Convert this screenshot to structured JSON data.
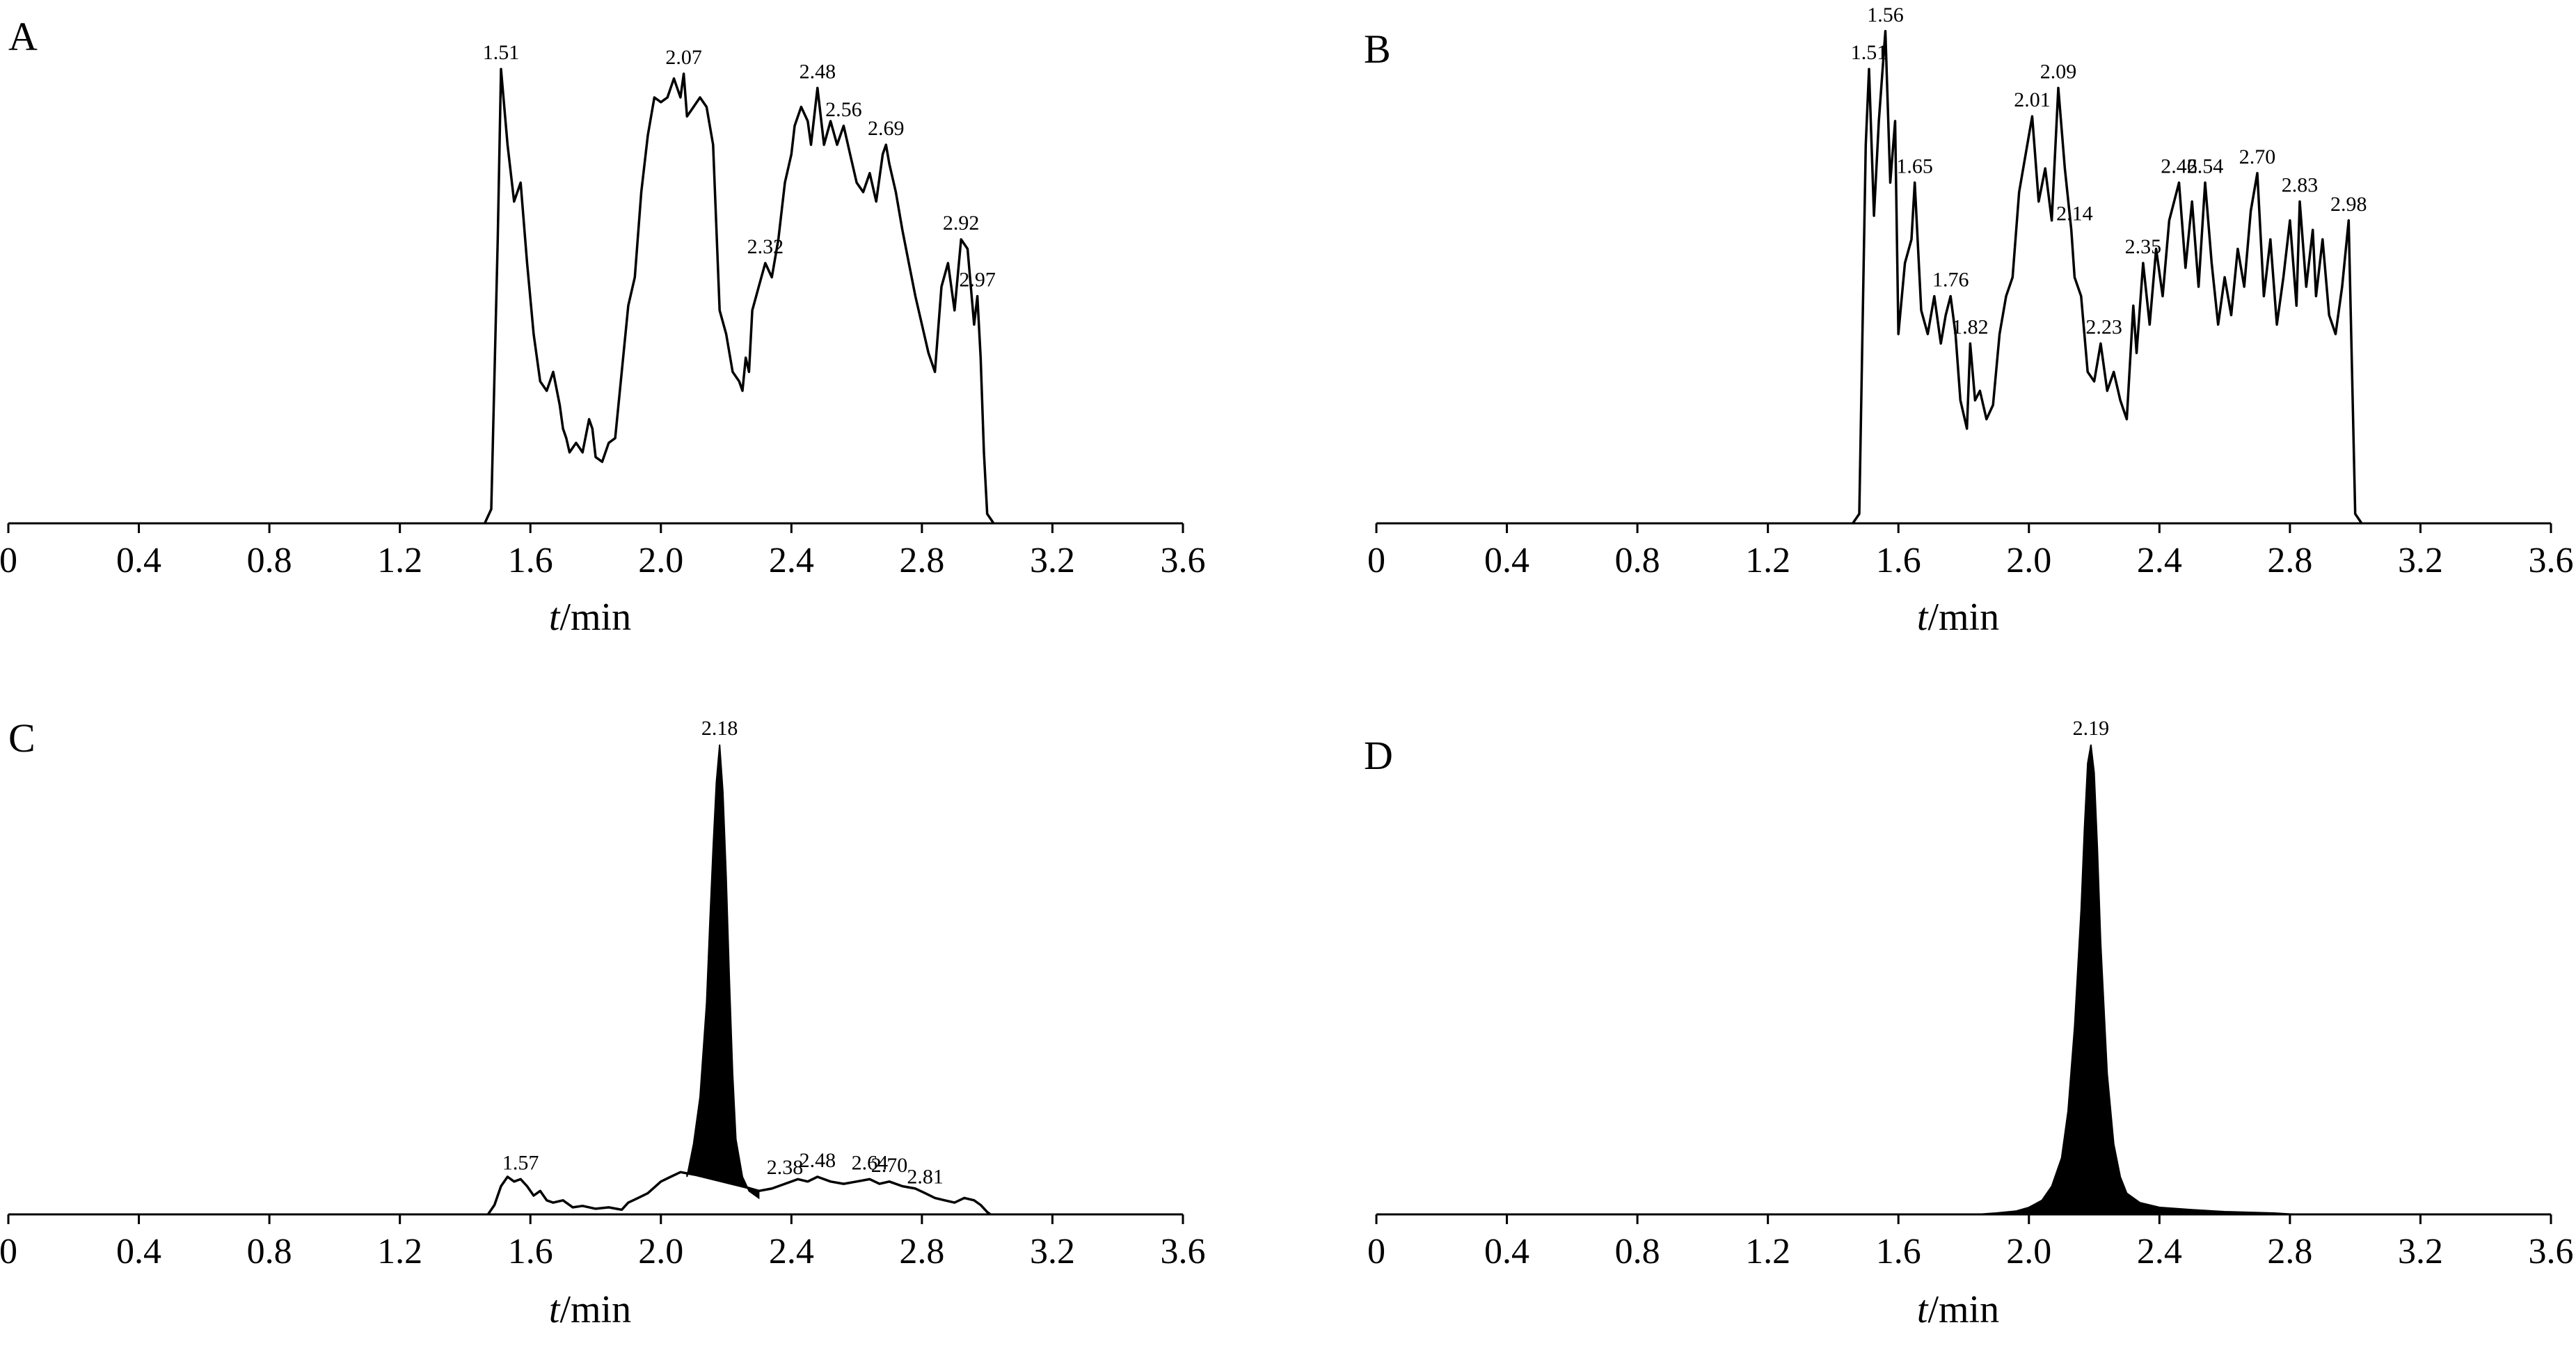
{
  "figure": {
    "background": "#ffffff",
    "line_color": "#000000",
    "fill_color": "#000000"
  },
  "chart_data": [
    {
      "panel": "A",
      "type": "line",
      "xlabel": {
        "italic": "t",
        "rest": "/min"
      },
      "ylabel": "",
      "xlim": [
        0,
        3.6
      ],
      "xticks": [
        0,
        0.4,
        0.8,
        1.2,
        1.6,
        2.0,
        2.4,
        2.8,
        3.2,
        3.6
      ],
      "xtick_labels": [
        "0",
        "0.4",
        "0.8",
        "1.2",
        "1.6",
        "2.0",
        "2.4",
        "2.8",
        "3.2",
        "3.6"
      ],
      "ylim": [
        0,
        100
      ],
      "grid": false,
      "series": [
        {
          "x": [
            1.46,
            1.48,
            1.5,
            1.51,
            1.53,
            1.55,
            1.57,
            1.59,
            1.61,
            1.63,
            1.65,
            1.67,
            1.69,
            1.7,
            1.71,
            1.72,
            1.74,
            1.76,
            1.78,
            1.79,
            1.8,
            1.82,
            1.84,
            1.86,
            1.88,
            1.9,
            1.92,
            1.94,
            1.96,
            1.98,
            2.0,
            2.02,
            2.04,
            2.05,
            2.06,
            2.07,
            2.08,
            2.1,
            2.12,
            2.14,
            2.16,
            2.18,
            2.2,
            2.22,
            2.24,
            2.25,
            2.26,
            2.27,
            2.28,
            2.3,
            2.32,
            2.34,
            2.36,
            2.38,
            2.4,
            2.41,
            2.43,
            2.45,
            2.46,
            2.48,
            2.5,
            2.52,
            2.54,
            2.56,
            2.58,
            2.6,
            2.62,
            2.64,
            2.66,
            2.68,
            2.69,
            2.7,
            2.72,
            2.74,
            2.76,
            2.78,
            2.8,
            2.82,
            2.84,
            2.86,
            2.88,
            2.9,
            2.92,
            2.94,
            2.96,
            2.97,
            2.98,
            2.99,
            3.0,
            3.02
          ],
          "y": [
            0,
            3,
            60,
            96,
            80,
            68,
            72,
            55,
            40,
            30,
            28,
            32,
            25,
            20,
            18,
            15,
            17,
            15,
            22,
            20,
            14,
            13,
            17,
            18,
            32,
            46,
            52,
            70,
            82,
            90,
            89,
            90,
            94,
            92,
            90,
            95,
            86,
            88,
            90,
            88,
            80,
            45,
            40,
            32,
            30,
            28,
            35,
            32,
            45,
            50,
            55,
            52,
            60,
            72,
            78,
            84,
            88,
            85,
            80,
            92,
            80,
            85,
            80,
            84,
            78,
            72,
            70,
            74,
            68,
            78,
            80,
            76,
            70,
            62,
            55,
            48,
            42,
            36,
            32,
            50,
            55,
            45,
            60,
            58,
            42,
            48,
            35,
            15,
            2,
            0
          ]
        }
      ],
      "annotations": [
        {
          "x": 1.51,
          "text": "1.51"
        },
        {
          "x": 2.07,
          "text": "2.07"
        },
        {
          "x": 2.32,
          "text": "2.32"
        },
        {
          "x": 2.48,
          "text": "2.48"
        },
        {
          "x": 2.56,
          "text": "2.56"
        },
        {
          "x": 2.69,
          "text": "2.69"
        },
        {
          "x": 2.92,
          "text": "2.92"
        },
        {
          "x": 2.97,
          "text": "2.97"
        }
      ]
    },
    {
      "panel": "B",
      "type": "line",
      "xlabel": {
        "italic": "t",
        "rest": "/min"
      },
      "ylabel": "",
      "xlim": [
        0,
        3.6
      ],
      "xticks": [
        0,
        0.4,
        0.8,
        1.2,
        1.6,
        2.0,
        2.4,
        2.8,
        3.2,
        3.6
      ],
      "xtick_labels": [
        "0",
        "0.4",
        "0.8",
        "1.2",
        "1.6",
        "2.0",
        "2.4",
        "2.8",
        "3.2",
        "3.6"
      ],
      "ylim": [
        0,
        100
      ],
      "grid": false,
      "series": [
        {
          "x": [
            1.46,
            1.48,
            1.5,
            1.51,
            1.525,
            1.54,
            1.56,
            1.575,
            1.59,
            1.6,
            1.62,
            1.64,
            1.65,
            1.67,
            1.69,
            1.71,
            1.73,
            1.745,
            1.76,
            1.775,
            1.79,
            1.81,
            1.82,
            1.835,
            1.85,
            1.87,
            1.89,
            1.91,
            1.93,
            1.95,
            1.97,
            1.99,
            2.01,
            2.03,
            2.05,
            2.07,
            2.09,
            2.11,
            2.13,
            2.14,
            2.16,
            2.18,
            2.2,
            2.22,
            2.24,
            2.26,
            2.28,
            2.3,
            2.32,
            2.33,
            2.35,
            2.37,
            2.39,
            2.41,
            2.43,
            2.46,
            2.48,
            2.5,
            2.52,
            2.54,
            2.56,
            2.58,
            2.6,
            2.62,
            2.64,
            2.66,
            2.68,
            2.7,
            2.72,
            2.74,
            2.76,
            2.78,
            2.8,
            2.82,
            2.83,
            2.85,
            2.87,
            2.88,
            2.9,
            2.92,
            2.94,
            2.96,
            2.98,
            3.0,
            3.02
          ],
          "y": [
            0,
            2,
            80,
            96,
            65,
            85,
            104,
            72,
            85,
            40,
            55,
            60,
            72,
            45,
            40,
            48,
            38,
            44,
            48,
            40,
            26,
            20,
            38,
            26,
            28,
            22,
            25,
            40,
            48,
            52,
            70,
            78,
            86,
            68,
            75,
            64,
            92,
            75,
            62,
            52,
            48,
            32,
            30,
            38,
            28,
            32,
            26,
            22,
            46,
            36,
            55,
            42,
            58,
            48,
            64,
            72,
            54,
            68,
            50,
            72,
            55,
            42,
            52,
            44,
            58,
            50,
            66,
            74,
            48,
            60,
            42,
            52,
            64,
            46,
            68,
            50,
            62,
            48,
            60,
            44,
            40,
            50,
            64,
            2,
            0
          ]
        }
      ],
      "annotations": [
        {
          "x": 1.51,
          "text": "1.51"
        },
        {
          "x": 1.56,
          "text": "1.56"
        },
        {
          "x": 1.65,
          "text": "1.65"
        },
        {
          "x": 1.76,
          "text": "1.76"
        },
        {
          "x": 1.82,
          "text": "1.82"
        },
        {
          "x": 2.01,
          "text": "2.01"
        },
        {
          "x": 2.09,
          "text": "2.09"
        },
        {
          "x": 2.14,
          "text": "2.14"
        },
        {
          "x": 2.23,
          "text": "2.23"
        },
        {
          "x": 2.35,
          "text": "2.35"
        },
        {
          "x": 2.46,
          "text": "2.46"
        },
        {
          "x": 2.54,
          "text": "2.54"
        },
        {
          "x": 2.7,
          "text": "2.70"
        },
        {
          "x": 2.83,
          "text": "2.83"
        },
        {
          "x": 2.98,
          "text": "2.98"
        }
      ]
    },
    {
      "panel": "C",
      "type": "line",
      "xlabel": {
        "italic": "t",
        "rest": "/min"
      },
      "ylabel": "",
      "xlim": [
        0,
        3.6
      ],
      "xticks": [
        0,
        0.4,
        0.8,
        1.2,
        1.6,
        2.0,
        2.4,
        2.8,
        3.2,
        3.6
      ],
      "xtick_labels": [
        "0",
        "0.4",
        "0.8",
        "1.2",
        "1.6",
        "2.0",
        "2.4",
        "2.8",
        "3.2",
        "3.6"
      ],
      "ylim": [
        0,
        100
      ],
      "grid": false,
      "series": [
        {
          "x": [
            1.47,
            1.49,
            1.51,
            1.53,
            1.55,
            1.57,
            1.59,
            1.61,
            1.63,
            1.65,
            1.67,
            1.7,
            1.73,
            1.76,
            1.8,
            1.84,
            1.88,
            1.9,
            1.93,
            1.96,
            2.0,
            2.03,
            2.06,
            2.1,
            2.15,
            2.2,
            2.25,
            2.3,
            2.34,
            2.38,
            2.42,
            2.45,
            2.48,
            2.52,
            2.56,
            2.6,
            2.64,
            2.67,
            2.7,
            2.74,
            2.78,
            2.81,
            2.84,
            2.87,
            2.9,
            2.93,
            2.96,
            2.98,
            3.0,
            3.01
          ],
          "y": [
            0,
            2,
            6,
            8,
            7,
            7.5,
            6,
            4,
            5,
            3,
            2.5,
            3,
            1.5,
            1.8,
            1.2,
            1.5,
            1,
            2.5,
            3.5,
            4.5,
            7,
            8,
            9,
            8.5,
            8,
            7,
            6,
            5,
            5.5,
            6.5,
            7.5,
            7,
            8,
            7,
            6.5,
            7,
            7.5,
            6.5,
            7,
            6,
            5.5,
            4.5,
            3.5,
            3,
            2.5,
            3.5,
            3,
            2,
            0.5,
            0
          ]
        }
      ],
      "filled_peak": {
        "x": [
          2.08,
          2.1,
          2.12,
          2.14,
          2.15,
          2.16,
          2.17,
          2.18,
          2.19,
          2.2,
          2.21,
          2.22,
          2.23,
          2.25,
          2.27,
          2.3
        ],
        "y": [
          8,
          15,
          25,
          45,
          62,
          78,
          92,
          100,
          90,
          72,
          50,
          30,
          16,
          8,
          5,
          3.5
        ]
      },
      "annotations": [
        {
          "x": 1.57,
          "text": "1.57"
        },
        {
          "x": 2.18,
          "text": "2.18"
        },
        {
          "x": 2.38,
          "text": "2.38"
        },
        {
          "x": 2.48,
          "text": "2.48"
        },
        {
          "x": 2.64,
          "text": "2.64"
        },
        {
          "x": 2.7,
          "text": "2.70"
        },
        {
          "x": 2.81,
          "text": "2.81"
        }
      ]
    },
    {
      "panel": "D",
      "type": "area",
      "xlabel": {
        "italic": "t",
        "rest": "/min"
      },
      "ylabel": "",
      "xlim": [
        0,
        3.6
      ],
      "xticks": [
        0,
        0.4,
        0.8,
        1.2,
        1.6,
        2.0,
        2.4,
        2.8,
        3.2,
        3.6
      ],
      "xtick_labels": [
        "0",
        "0.4",
        "0.8",
        "1.2",
        "1.6",
        "2.0",
        "2.4",
        "2.8",
        "3.2",
        "3.6"
      ],
      "ylim": [
        0,
        100
      ],
      "grid": false,
      "series": [
        {
          "x": [
            1.84,
            1.9,
            1.96,
            2.0,
            2.04,
            2.07,
            2.1,
            2.12,
            2.14,
            2.16,
            2.17,
            2.18,
            2.19,
            2.2,
            2.21,
            2.22,
            2.24,
            2.26,
            2.28,
            2.3,
            2.34,
            2.4,
            2.5,
            2.6,
            2.75,
            2.82
          ],
          "y": [
            0,
            0.3,
            0.7,
            1.5,
            3,
            6,
            12,
            22,
            40,
            65,
            82,
            96,
            100,
            94,
            78,
            58,
            30,
            15,
            8,
            4.5,
            2.5,
            1.5,
            1,
            0.6,
            0.3,
            0
          ]
        }
      ],
      "annotations": [
        {
          "x": 2.19,
          "text": "2.19"
        }
      ]
    }
  ]
}
